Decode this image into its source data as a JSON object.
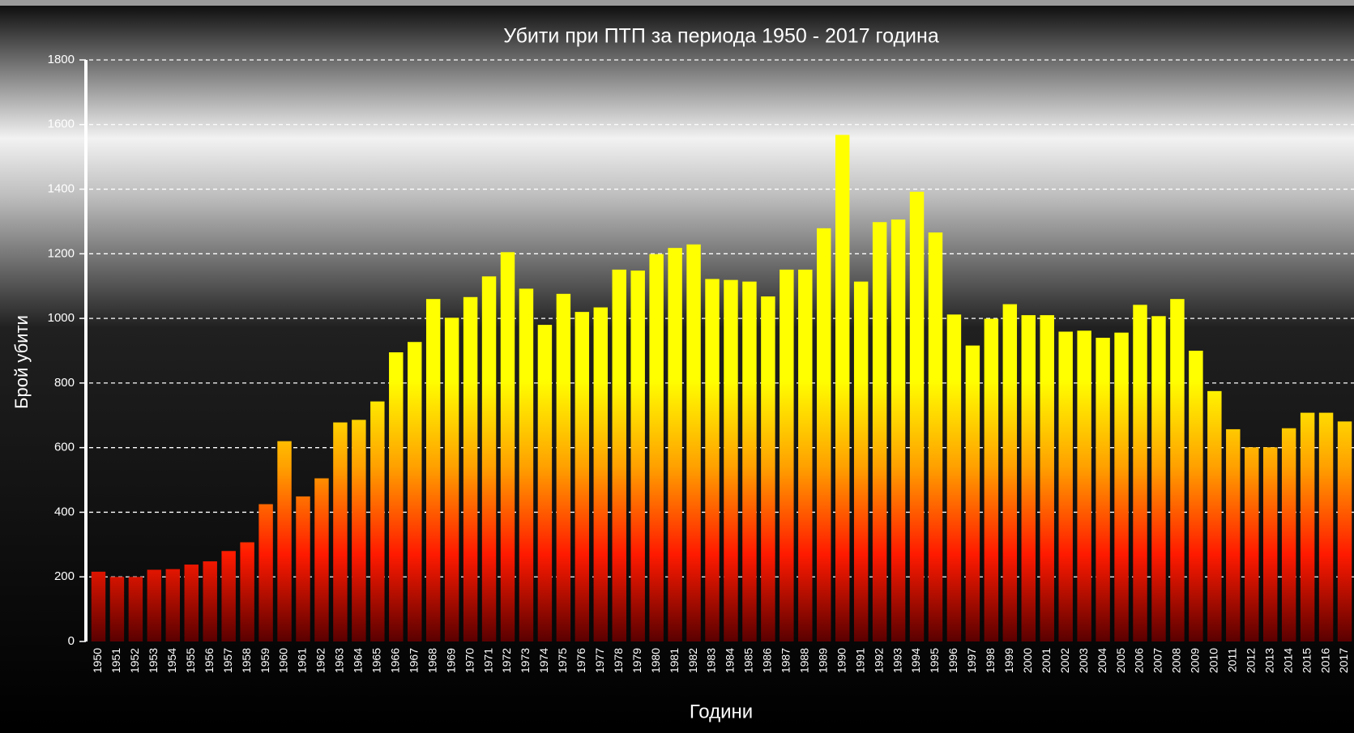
{
  "chart_data": {
    "type": "bar",
    "title": "Убити при ПТП за периода 1950 - 2017 година",
    "x_label": "Години",
    "y_label": "Брой убити",
    "categories": [
      "1950",
      "1951",
      "1952",
      "1953",
      "1954",
      "1955",
      "1956",
      "1957",
      "1958",
      "1959",
      "1960",
      "1961",
      "1962",
      "1963",
      "1964",
      "1965",
      "1966",
      "1967",
      "1968",
      "1969",
      "1970",
      "1971",
      "1972",
      "1973",
      "1974",
      "1975",
      "1976",
      "1977",
      "1978",
      "1979",
      "1980",
      "1981",
      "1982",
      "1983",
      "1984",
      "1985",
      "1986",
      "1987",
      "1988",
      "1989",
      "1990",
      "1991",
      "1992",
      "1993",
      "1994",
      "1995",
      "1996",
      "1997",
      "1998",
      "1999",
      "2000",
      "2001",
      "2002",
      "2003",
      "2004",
      "2005",
      "2006",
      "2007",
      "2008",
      "2009",
      "2010",
      "2011",
      "2012",
      "2013",
      "2014",
      "2015",
      "2016",
      "2017"
    ],
    "values": [
      216,
      200,
      200,
      222,
      224,
      238,
      248,
      280,
      307,
      425,
      620,
      449,
      505,
      678,
      686,
      743,
      895,
      927,
      1060,
      1002,
      1066,
      1130,
      1205,
      1092,
      980,
      1076,
      1020,
      1034,
      1151,
      1148,
      1199,
      1218,
      1229,
      1122,
      1119,
      1114,
      1068,
      1151,
      1151,
      1279,
      1568,
      1114,
      1298,
      1306,
      1392,
      1266,
      1012,
      916,
      999,
      1044,
      1010,
      1010,
      959,
      962,
      940,
      956,
      1042,
      1007,
      1060,
      900,
      775,
      657,
      601,
      601,
      660,
      708,
      708,
      681
    ],
    "colors": [
      "#ffff00",
      "#ffa000",
      "#ff1a00",
      "#5a0000"
    ],
    "ylim": [
      0,
      1800
    ],
    "yticks": [
      0,
      200,
      400,
      600,
      800,
      1000,
      1200,
      1400,
      1600,
      1800
    ],
    "grid": true
  }
}
